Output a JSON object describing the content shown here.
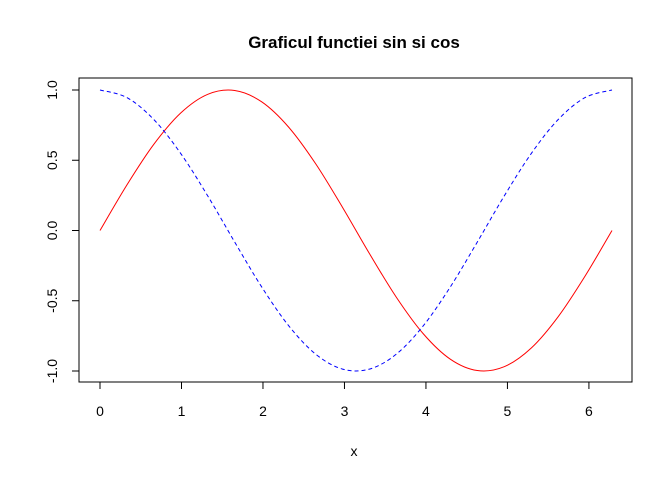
{
  "chart_data": {
    "type": "line",
    "title": "Graficul functiei sin si cos",
    "xlabel": "x",
    "ylabel": "",
    "xlim": [
      0,
      6.2832
    ],
    "ylim": [
      -1,
      1
    ],
    "x_ticks": [
      0,
      1,
      2,
      3,
      4,
      5,
      6
    ],
    "x_tick_labels": [
      "0",
      "1",
      "2",
      "3",
      "4",
      "5",
      "6"
    ],
    "y_ticks": [
      -1,
      -0.5,
      0,
      0.5,
      1
    ],
    "y_tick_labels": [
      "-1.0",
      "-0.5",
      "0.0",
      "0.5",
      "1.0"
    ],
    "grid": false,
    "legend": "none",
    "x": [
      0,
      0.3307,
      0.6614,
      0.9921,
      1.3228,
      1.6535,
      1.9842,
      2.3149,
      2.6456,
      2.9762,
      3.3069,
      3.6376,
      3.9683,
      4.299,
      4.6297,
      4.9604,
      5.2911,
      5.6218,
      5.9525,
      6.2832
    ],
    "series": [
      {
        "color": "#ff0000",
        "line_style": "solid",
        "values": [
          0,
          0.3247,
          0.6142,
          0.8372,
          0.9694,
          0.9966,
          0.9158,
          0.7357,
          0.4759,
          0.1646,
          -0.1646,
          -0.4759,
          -0.7357,
          -0.9158,
          -0.9966,
          -0.9694,
          -0.8372,
          -0.6142,
          -0.3247,
          0
        ]
      },
      {
        "color": "#0000ff",
        "line_style": "dashed",
        "values": [
          1,
          0.9458,
          0.7891,
          0.5469,
          0.2455,
          -0.0826,
          -0.4017,
          -0.6773,
          -0.8795,
          -0.9864,
          -0.9864,
          -0.8795,
          -0.6773,
          -0.4017,
          -0.0826,
          0.2455,
          0.5469,
          0.7891,
          0.9458,
          1
        ]
      }
    ]
  }
}
